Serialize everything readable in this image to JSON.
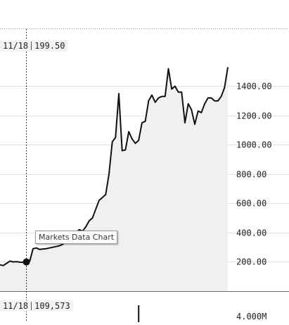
{
  "main_readout": {
    "date": "11/18",
    "value": "199.50"
  },
  "volume_readout": {
    "date": "11/18",
    "value": "109,573"
  },
  "tooltip": "Markets Data Chart",
  "colors": {
    "line": "#111111",
    "area": "#f0f0f0",
    "grid": "#e2e2e2",
    "crosshair": "#333333",
    "marker": "#111111"
  },
  "chart_data": [
    {
      "type": "area",
      "title": "",
      "y_tick_labels": [
        "200.00",
        "400.00",
        "600.00",
        "800.00",
        "1000.00",
        "1200.00",
        "1400.00"
      ],
      "ylim": [
        0,
        1700
      ],
      "grid": true,
      "crosshair_index": 8,
      "series": [
        {
          "values": [
            180,
            175,
            190,
            205,
            200,
            202,
            198,
            197,
            199.5,
            205,
            290,
            295,
            285,
            288,
            290,
            295,
            300,
            305,
            310,
            320,
            340,
            360,
            380,
            400,
            420,
            410,
            440,
            480,
            500,
            560,
            620,
            640,
            660,
            800,
            1020,
            1050,
            1350,
            960,
            965,
            1090,
            1040,
            1010,
            1030,
            1150,
            1160,
            1300,
            1340,
            1290,
            1320,
            1330,
            1330,
            1520,
            1380,
            1400,
            1360,
            1360,
            1150,
            1280,
            1240,
            1140,
            1230,
            1220,
            1280,
            1320,
            1320,
            1300,
            1300,
            1330,
            1390,
            1530
          ]
        }
      ]
    },
    {
      "type": "bar",
      "title": "",
      "y_tick_labels": [
        "4.000M"
      ],
      "visible_bars": [
        {
          "index": 42,
          "value": 4.9
        }
      ]
    }
  ]
}
